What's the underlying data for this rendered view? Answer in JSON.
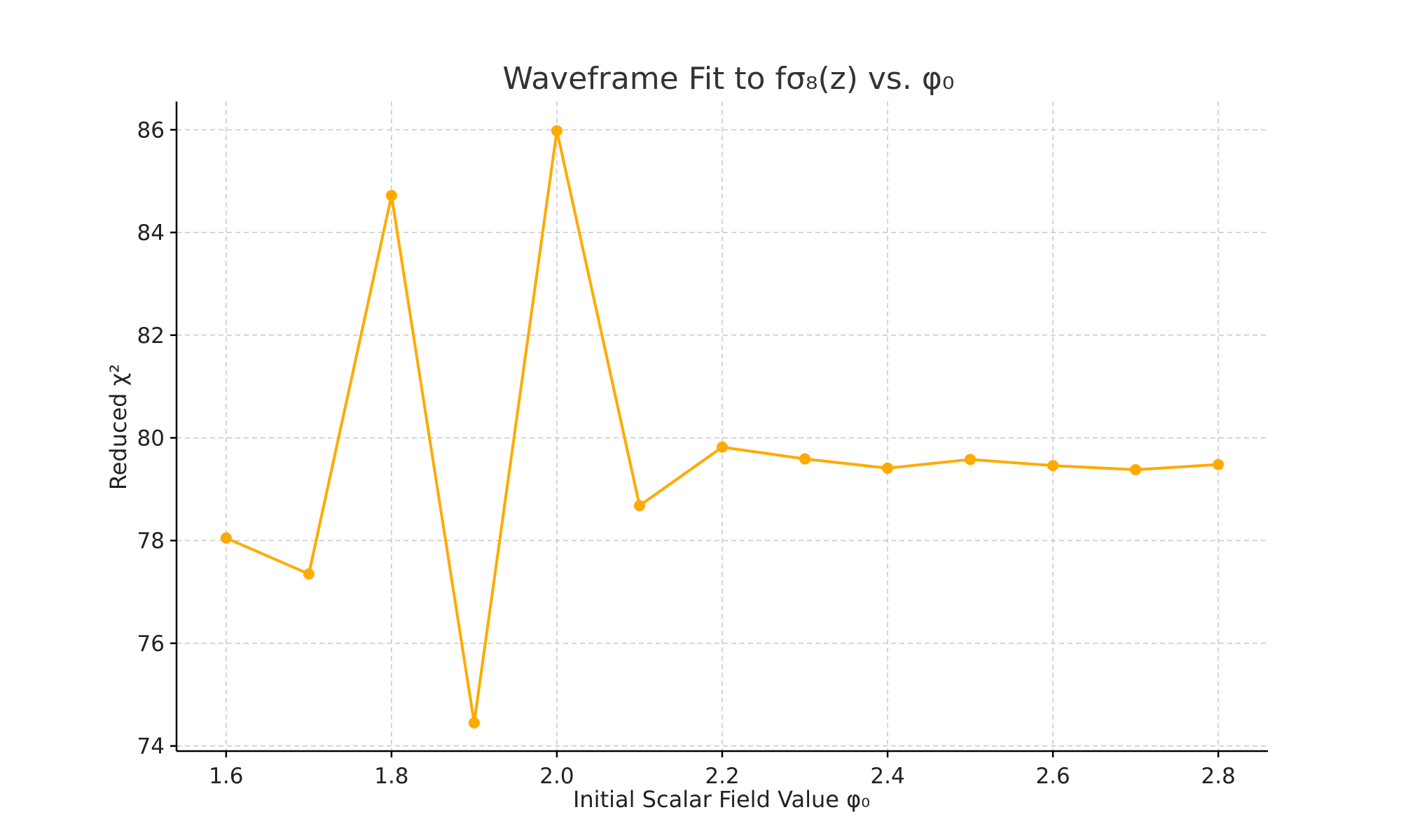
{
  "chart_data": {
    "type": "line",
    "title": "Waveframe Fit to fσ₈(z) vs. φ₀",
    "xlabel": "Initial Scalar Field Value φ₀",
    "ylabel": "Reduced χ²",
    "x": [
      1.6,
      1.7,
      1.8,
      1.9,
      2.0,
      2.1,
      2.2,
      2.3,
      2.4,
      2.5,
      2.6,
      2.7,
      2.8
    ],
    "series": [
      {
        "values": [
          78.05,
          77.35,
          84.72,
          74.45,
          85.98,
          78.68,
          79.82,
          79.59,
          79.41,
          79.58,
          79.46,
          79.38,
          79.48
        ],
        "color": "#FFAA00"
      }
    ],
    "xlim": [
      1.54,
      2.86
    ],
    "ylim": [
      73.9,
      86.55
    ],
    "xticks": [
      1.6,
      1.8,
      2.0,
      2.2,
      2.4,
      2.6,
      2.8
    ],
    "xtick_labels": [
      "1.6",
      "1.8",
      "2.0",
      "2.2",
      "2.4",
      "2.6",
      "2.8"
    ],
    "yticks": [
      74,
      76,
      78,
      80,
      82,
      84,
      86
    ],
    "ytick_labels": [
      "74",
      "76",
      "78",
      "80",
      "82",
      "84",
      "86"
    ],
    "grid": true,
    "markers": true
  }
}
